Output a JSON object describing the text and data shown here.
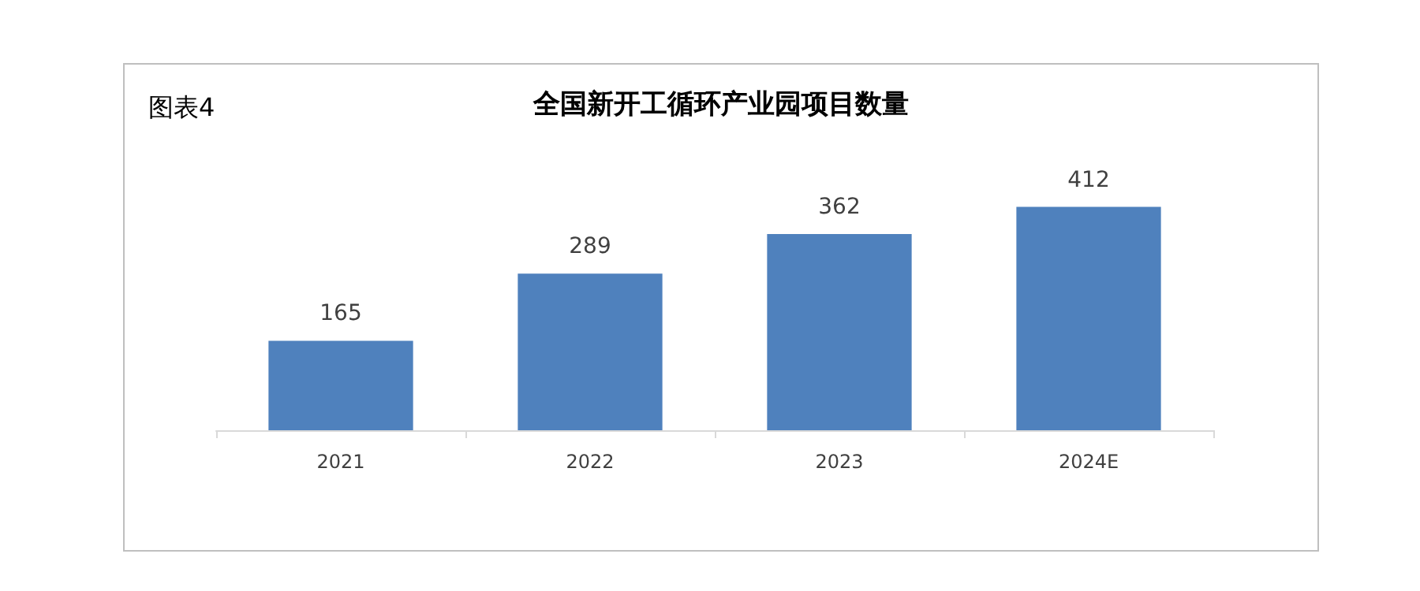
{
  "chart_data": {
    "type": "bar",
    "title": "全国新开工循环产业园项目数量",
    "annotations": [
      "图表4"
    ],
    "categories": [
      "2021",
      "2022",
      "2023",
      "2024E"
    ],
    "values": [
      165,
      289,
      362,
      412
    ],
    "color": "#4f81bd",
    "data_labels": true
  }
}
